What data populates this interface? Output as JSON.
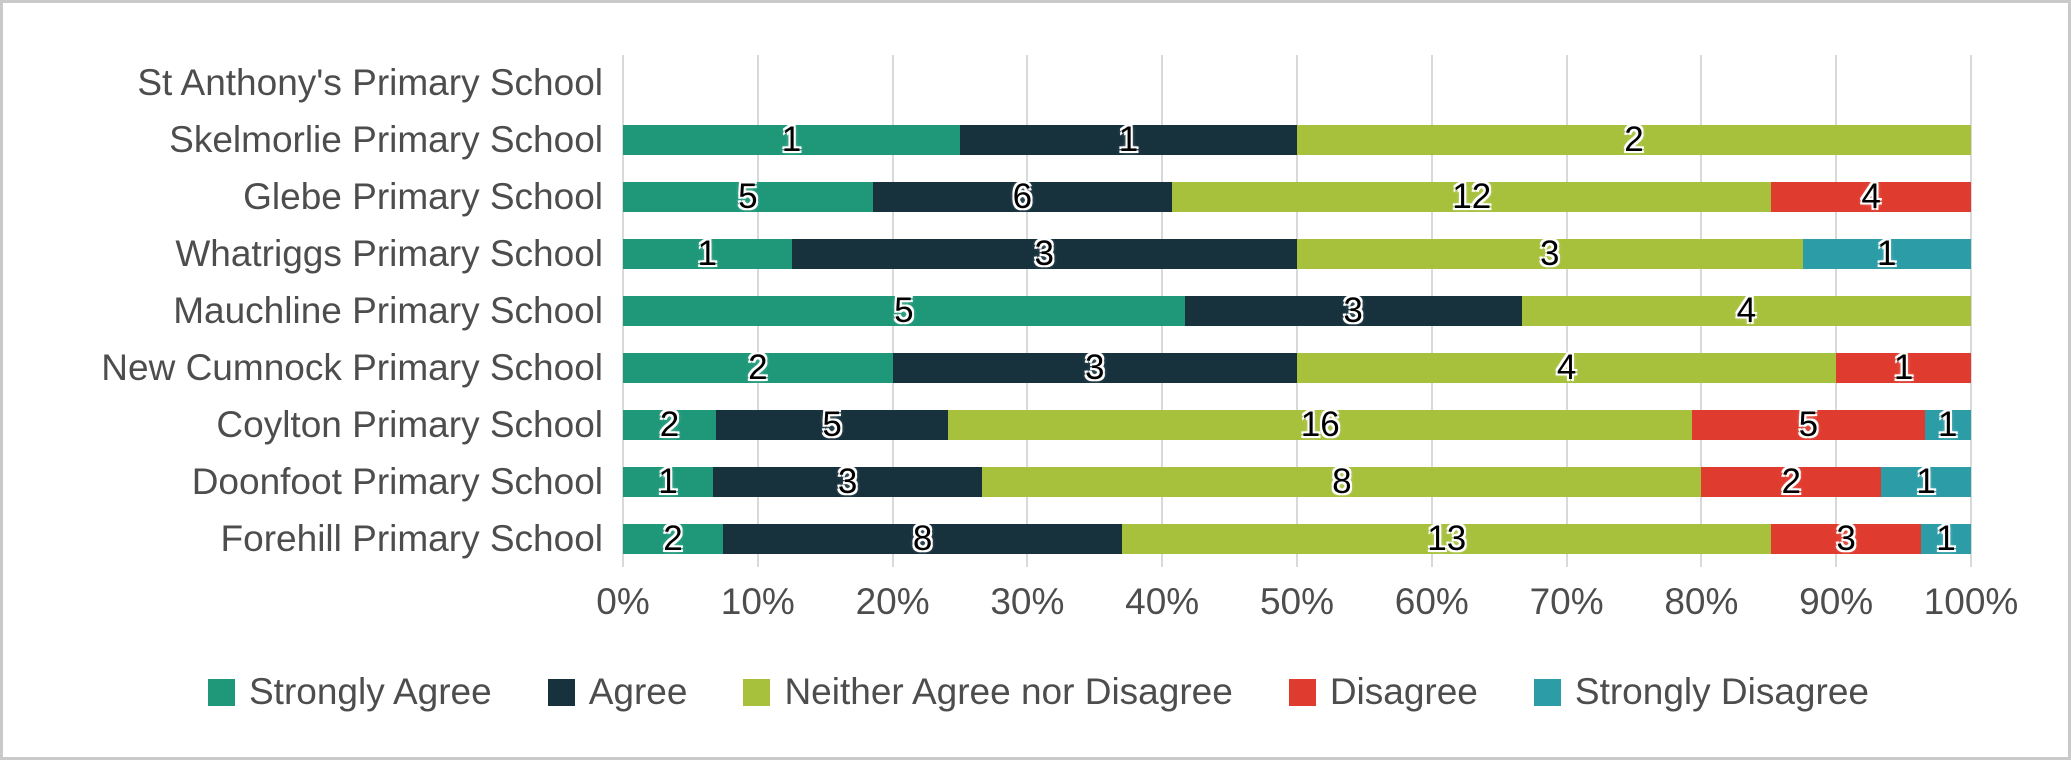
{
  "chart_data": {
    "type": "bar",
    "stacked": true,
    "orientation": "horizontal",
    "title": "",
    "xlabel": "",
    "ylabel": "",
    "xlim": [
      0,
      100
    ],
    "grid": true,
    "legend_position": "bottom",
    "categories": [
      "St Anthony's Primary School",
      "Skelmorlie Primary School",
      "Glebe Primary School",
      "Whatriggs Primary School",
      "Mauchline Primary School",
      "New Cumnock Primary School",
      "Coylton Primary School",
      "Doonfoot Primary School",
      "Forehill Primary School"
    ],
    "series": [
      {
        "name": "Strongly Agree",
        "color": "#1F9879",
        "values": [
          0,
          1,
          5,
          1,
          5,
          2,
          2,
          1,
          2
        ]
      },
      {
        "name": "Agree",
        "color": "#17313D",
        "values": [
          0,
          1,
          6,
          3,
          3,
          3,
          5,
          3,
          8
        ]
      },
      {
        "name": "Neither Agree nor Disagree",
        "color": "#A7C13D",
        "values": [
          0,
          2,
          12,
          3,
          4,
          4,
          16,
          8,
          13
        ]
      },
      {
        "name": "Disagree",
        "color": "#E03B2F",
        "values": [
          0,
          0,
          4,
          0,
          0,
          1,
          5,
          2,
          3
        ]
      },
      {
        "name": "Strongly Disagree",
        "color": "#2C9CA6",
        "values": [
          0,
          0,
          0,
          1,
          0,
          0,
          1,
          1,
          1
        ]
      }
    ],
    "x_ticks": [
      "0%",
      "10%",
      "20%",
      "30%",
      "40%",
      "50%",
      "60%",
      "70%",
      "80%",
      "90%",
      "100%"
    ],
    "gridline_color": "#d9d9d9",
    "label_color": "#4d4d4d",
    "data_label_color": "#000000"
  }
}
